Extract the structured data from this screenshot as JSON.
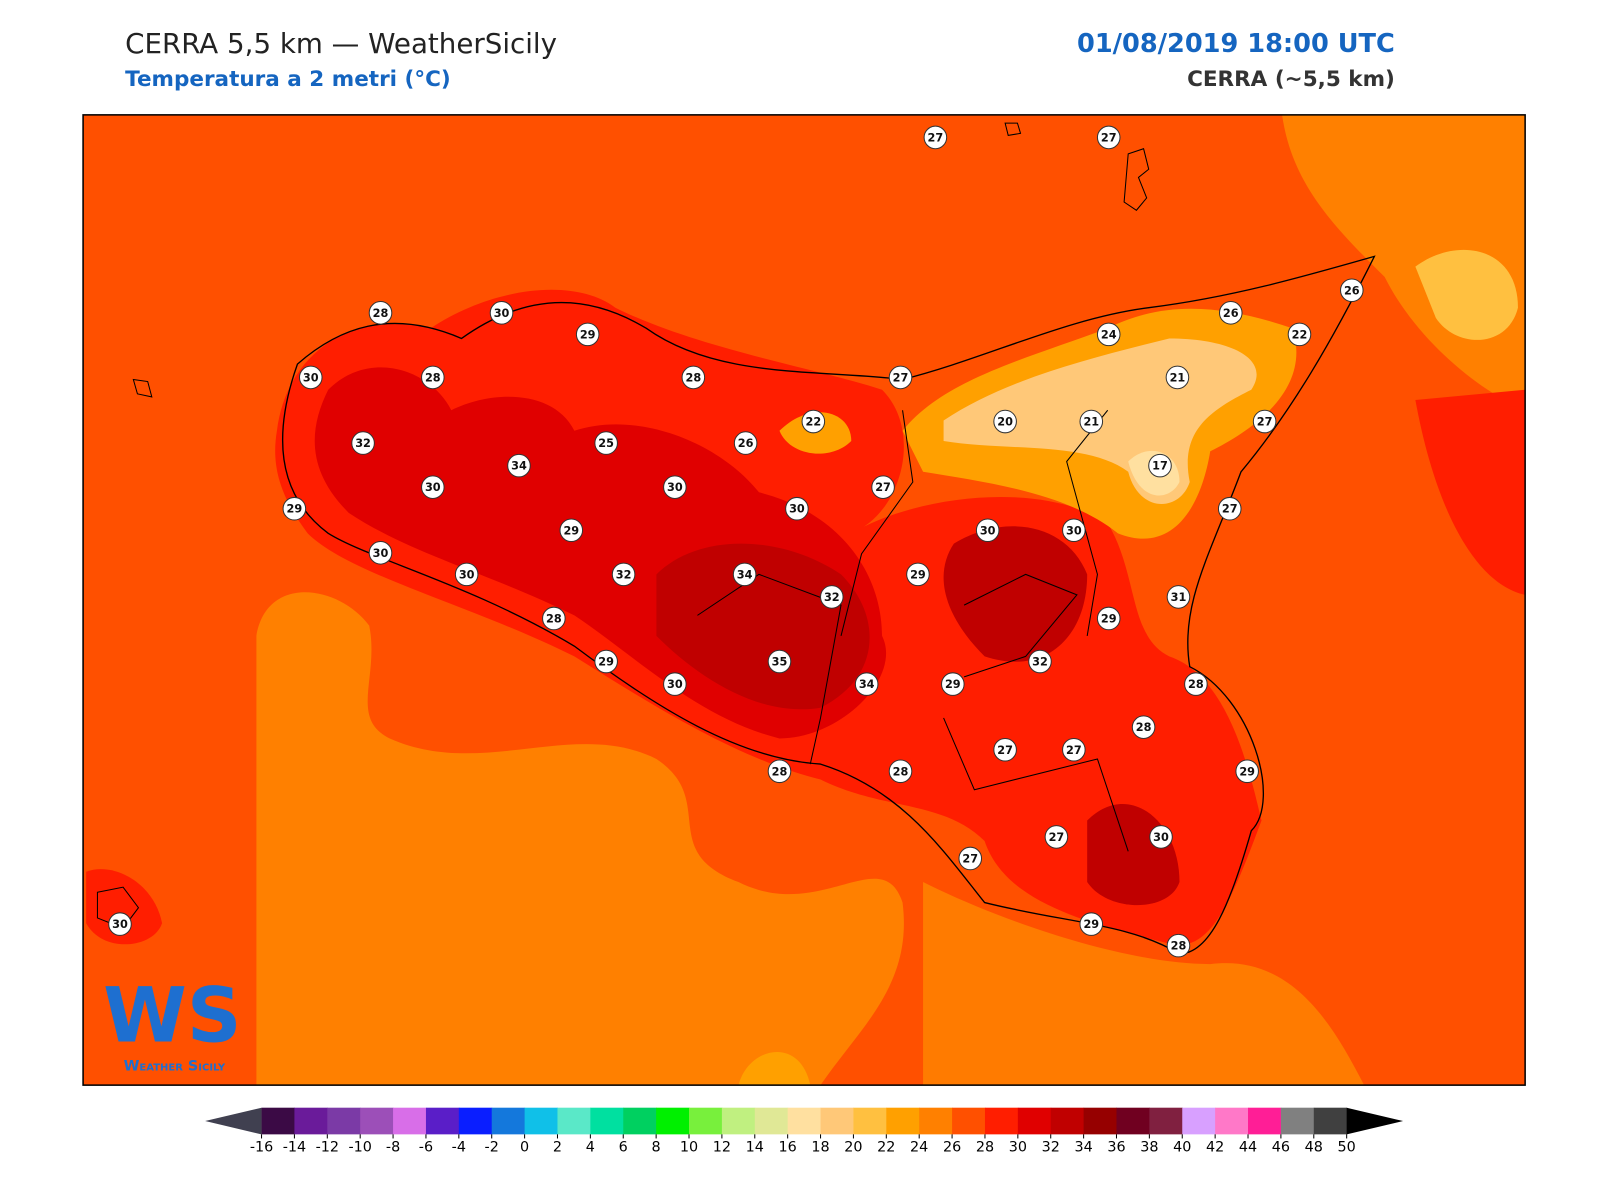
{
  "header": {
    "title": "CERRA 5,5 km — WeatherSicily",
    "subtitle": "Temperatura a 2 metri (°C)",
    "datetime": "01/08/2019 18:00 UTC",
    "model": "CERRA (~5,5 km)"
  },
  "stations": [
    27,
    27,
    28,
    30,
    29,
    26,
    26,
    24,
    22,
    30,
    28,
    28,
    27,
    21,
    22,
    20,
    21,
    27,
    32,
    25,
    26,
    17,
    34,
    30,
    30,
    27,
    29,
    30,
    27,
    29,
    30,
    30,
    30,
    30,
    32,
    34,
    29,
    32,
    31,
    28,
    29,
    29,
    35,
    32,
    30,
    34,
    29,
    28,
    28,
    27,
    27,
    28,
    28,
    29,
    27,
    30,
    27,
    30,
    29,
    28
  ],
  "colorbar": {
    "ticks": [
      -16,
      -14,
      -12,
      -10,
      -8,
      -6,
      -4,
      -2,
      0,
      2,
      4,
      6,
      8,
      10,
      12,
      14,
      16,
      18,
      20,
      22,
      24,
      26,
      28,
      30,
      32,
      34,
      36,
      38,
      40,
      42,
      44,
      46,
      48,
      50
    ],
    "colors": [
      "#3b0a45",
      "#6a1b9a",
      "#7b3aa6",
      "#9c4fb8",
      "#d86ee8",
      "#5a1ec8",
      "#0a1eff",
      "#1478dc",
      "#10c0e8",
      "#5ae8c8",
      "#00e0a0",
      "#00d060",
      "#00f000",
      "#78f03c",
      "#c0f080",
      "#e0e896",
      "#ffe0a0",
      "#ffc878",
      "#ffc040",
      "#ffa000",
      "#ff8000",
      "#ff5000",
      "#ff1e00",
      "#e00000",
      "#c00000",
      "#960000",
      "#700020",
      "#802040",
      "#d8a0ff",
      "#ff78c8",
      "#ff1e96",
      "#808080",
      "#404040"
    ]
  },
  "logo": {
    "letters": "WS",
    "name": "Weather Sicily"
  }
}
